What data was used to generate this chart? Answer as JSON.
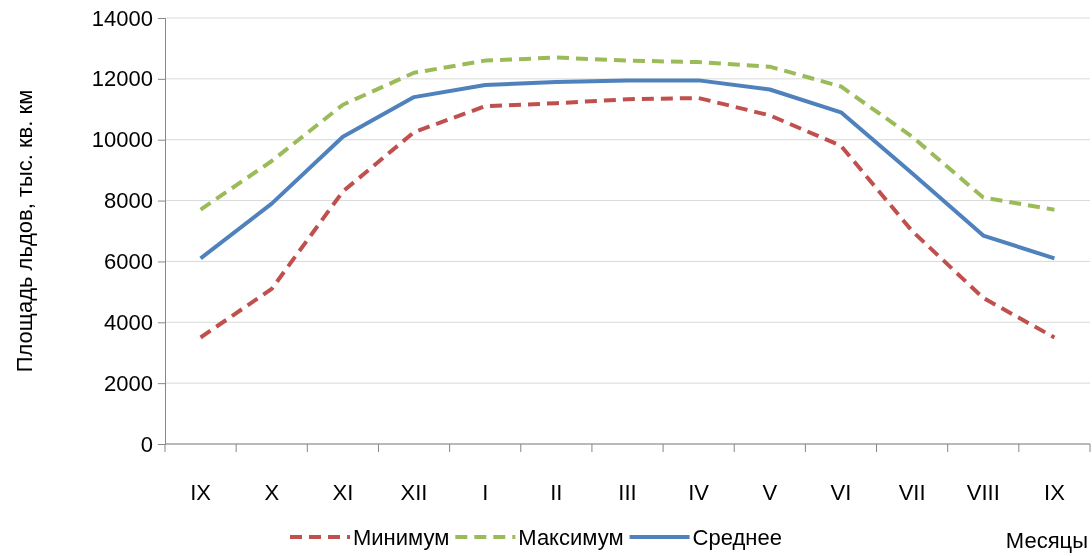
{
  "chart_data": {
    "type": "line",
    "xlabel": "Месяцы",
    "ylabel": "Площадь льдов, тыс. кв. км",
    "categories": [
      "IX",
      "X",
      "XI",
      "XII",
      "I",
      "II",
      "III",
      "IV",
      "V",
      "VI",
      "VII",
      "VIII",
      "IX"
    ],
    "series": [
      {
        "name": "Минимум",
        "color": "#c0504d",
        "line_style": "dashed",
        "values": [
          3500,
          5100,
          8300,
          10250,
          11100,
          11200,
          11330,
          11370,
          10800,
          9800,
          7000,
          4800,
          3500
        ]
      },
      {
        "name": "Максимум",
        "color": "#9bbb59",
        "line_style": "dashed",
        "values": [
          7700,
          9300,
          11150,
          12200,
          12600,
          12700,
          12600,
          12550,
          12400,
          11750,
          10100,
          8100,
          7700
        ]
      },
      {
        "name": "Среднее",
        "color": "#4f81bd",
        "line_style": "solid",
        "values": [
          6100,
          7900,
          10100,
          11400,
          11800,
          11900,
          11950,
          11950,
          11650,
          10900,
          8900,
          6850,
          6100
        ]
      }
    ],
    "ylim": [
      0,
      14000
    ],
    "yticks": [
      0,
      2000,
      4000,
      6000,
      8000,
      10000,
      12000,
      14000
    ],
    "grid": "y",
    "legend": "bottom",
    "marker": "none"
  }
}
